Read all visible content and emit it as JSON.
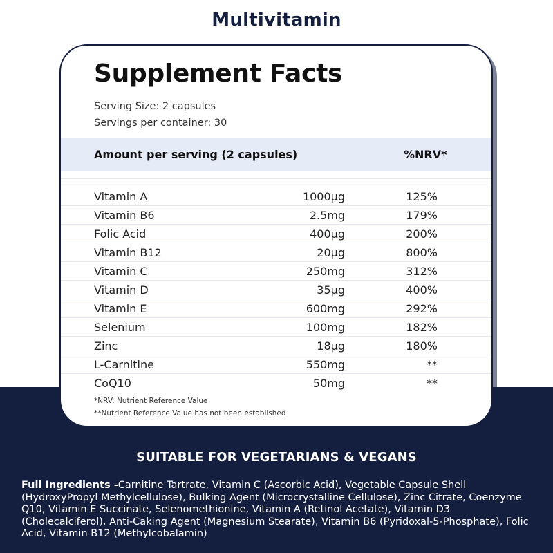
{
  "page": {
    "title": "Multivitamin"
  },
  "facts": {
    "heading": "Supplement Facts",
    "serving_size": "Serving Size: 2 capsules",
    "servings_per_container": "Servings per container: 30",
    "header_amount": "Amount per serving (2 capsules)",
    "header_nrv": "%NRV*",
    "rows": [
      {
        "name": "Vitamin A",
        "amount": "1000µg",
        "nrv": "125%"
      },
      {
        "name": "Vitamin B6",
        "amount": "2.5mg",
        "nrv": "179%"
      },
      {
        "name": "Folic Acid",
        "amount": "400µg",
        "nrv": "200%"
      },
      {
        "name": "Vitamin B12",
        "amount": "20µg",
        "nrv": "800%"
      },
      {
        "name": "Vitamin C",
        "amount": "250mg",
        "nrv": "312%"
      },
      {
        "name": "Vitamin D",
        "amount": "35µg",
        "nrv": "400%"
      },
      {
        "name": "Vitamin E",
        "amount": "600mg",
        "nrv": "292%"
      },
      {
        "name": "Selenium",
        "amount": "100mg",
        "nrv": "182%"
      },
      {
        "name": "Zinc",
        "amount": "18µg",
        "nrv": "180%"
      },
      {
        "name": "L-Carnitine",
        "amount": "550mg",
        "nrv": "**"
      },
      {
        "name": "CoQ10",
        "amount": "50mg",
        "nrv": "**"
      }
    ],
    "footnote_nrv": "*NRV: Nutrient Reference Value",
    "footnote_not_established": "**Nutrient Reference Value has not been established"
  },
  "banner": {
    "vegan_text": "SUITABLE FOR VEGETARIANS & VEGANS"
  },
  "ingredients": {
    "label": "Full Ingredients -",
    "text": "Carnitine Tartrate, Vitamin C (Ascorbic Acid), Vegetable Capsule Shell (HydroxyPropyl Methylcellulose), Bulking Agent (Microcrystalline Cellulose), Zinc Citrate, Coenzyme Q10, Vitamin E Succinate, Selenomethionine, Vitamin A (Retinol Acetate), Vitamin D3 (Cholecalciferol), Anti-Caking Agent (Magnesium Stearate), Vitamin B6 (Pyridoxal-5-Phosphate), Folic Acid, Vitamin B12 (Methylcobalamin)"
  },
  "colors": {
    "navy": "#141f3f",
    "header_bar": "#e6ebf8",
    "white": "#ffffff"
  }
}
